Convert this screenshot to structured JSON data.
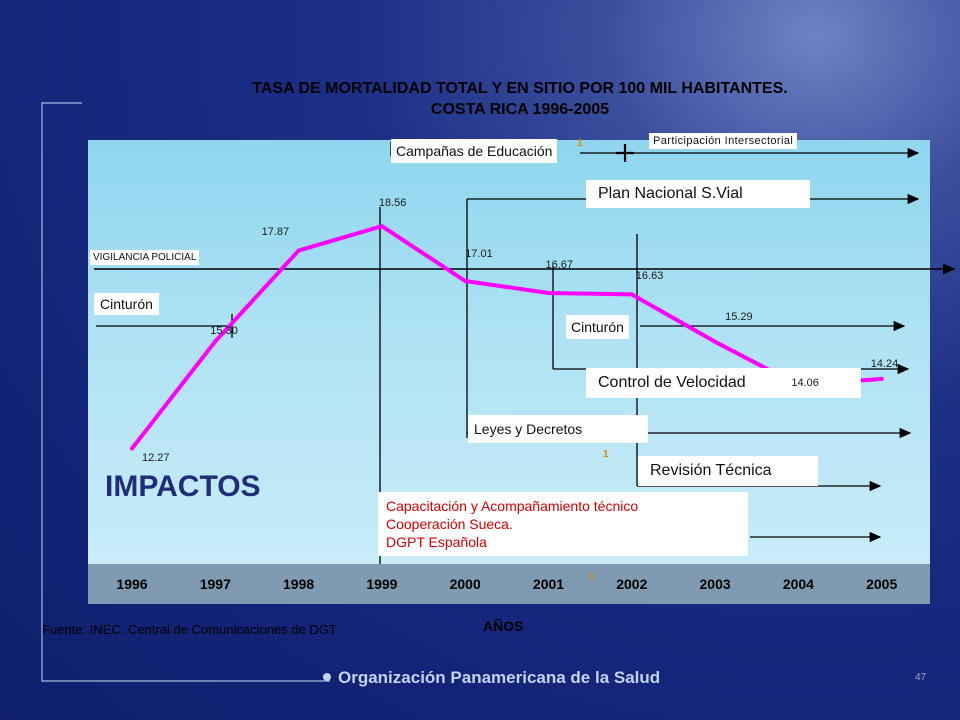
{
  "title_line1": "TASA DE MORTALIDAD TOTAL Y EN SITIO POR 100 MIL HABITANTES.",
  "title_line2": "COSTA RICA 1996-2005",
  "source": "Fuente: INEC. Central de Comunicaciones de DGT",
  "impacts_label": "IMPACTOS",
  "organization": "Organización Panamericana de la Salud",
  "page_number": "47",
  "colors": {
    "line": "#ff00ff",
    "background": "#14257a",
    "plot_area": "#aee2f4",
    "axis_band": "#7f9bb1",
    "accent_marker": "#e08a00",
    "cooperation_text": "#d40000"
  },
  "markers": [
    "1",
    "1",
    "1"
  ],
  "chart_data": {
    "type": "line",
    "title": "TASA DE MORTALIDAD TOTAL Y EN SITIO POR 100 MIL HABITANTES. COSTA RICA 1996-2005",
    "xlabel": "AÑOS",
    "ylabel": "",
    "categories": [
      "1996",
      "1997",
      "1998",
      "1999",
      "2000",
      "2001",
      "2002",
      "2003",
      "2004",
      "2005"
    ],
    "values": [
      12.27,
      15.3,
      17.87,
      18.56,
      17.01,
      16.67,
      16.63,
      15.29,
      14.06,
      14.24
    ],
    "data_labels": [
      "12.27",
      "15.30",
      "17.87",
      "18.56",
      "17.01",
      "16.67",
      "16.63",
      "15.29",
      "14.06",
      "14.24"
    ],
    "ylim": [
      9,
      21
    ],
    "grid": false,
    "interventions": [
      {
        "label": "VIGILANCIA POLICIAL",
        "start": "1996"
      },
      {
        "label": "Cinturón",
        "start": "1996",
        "end": "1997"
      },
      {
        "label": "Campañas de Educación",
        "start": "1999"
      },
      {
        "label": "Participación Intersectorial",
        "start": "2001"
      },
      {
        "label": "Plan Nacional S.Vial",
        "start": "2000"
      },
      {
        "label": "Cinturón",
        "start": "2001"
      },
      {
        "label": "Control de Velocidad",
        "start": "2001"
      },
      {
        "label": "Leyes y Decretos",
        "start": "2000"
      },
      {
        "label": "Revisión Técnica",
        "start": "2002"
      },
      {
        "label": "Capacitación y Acompañamiento técnico",
        "start": "1999"
      },
      {
        "label": "Cooperación Sueca.",
        "start": "1999"
      },
      {
        "label": "DGPT Española",
        "start": "1999"
      }
    ]
  }
}
